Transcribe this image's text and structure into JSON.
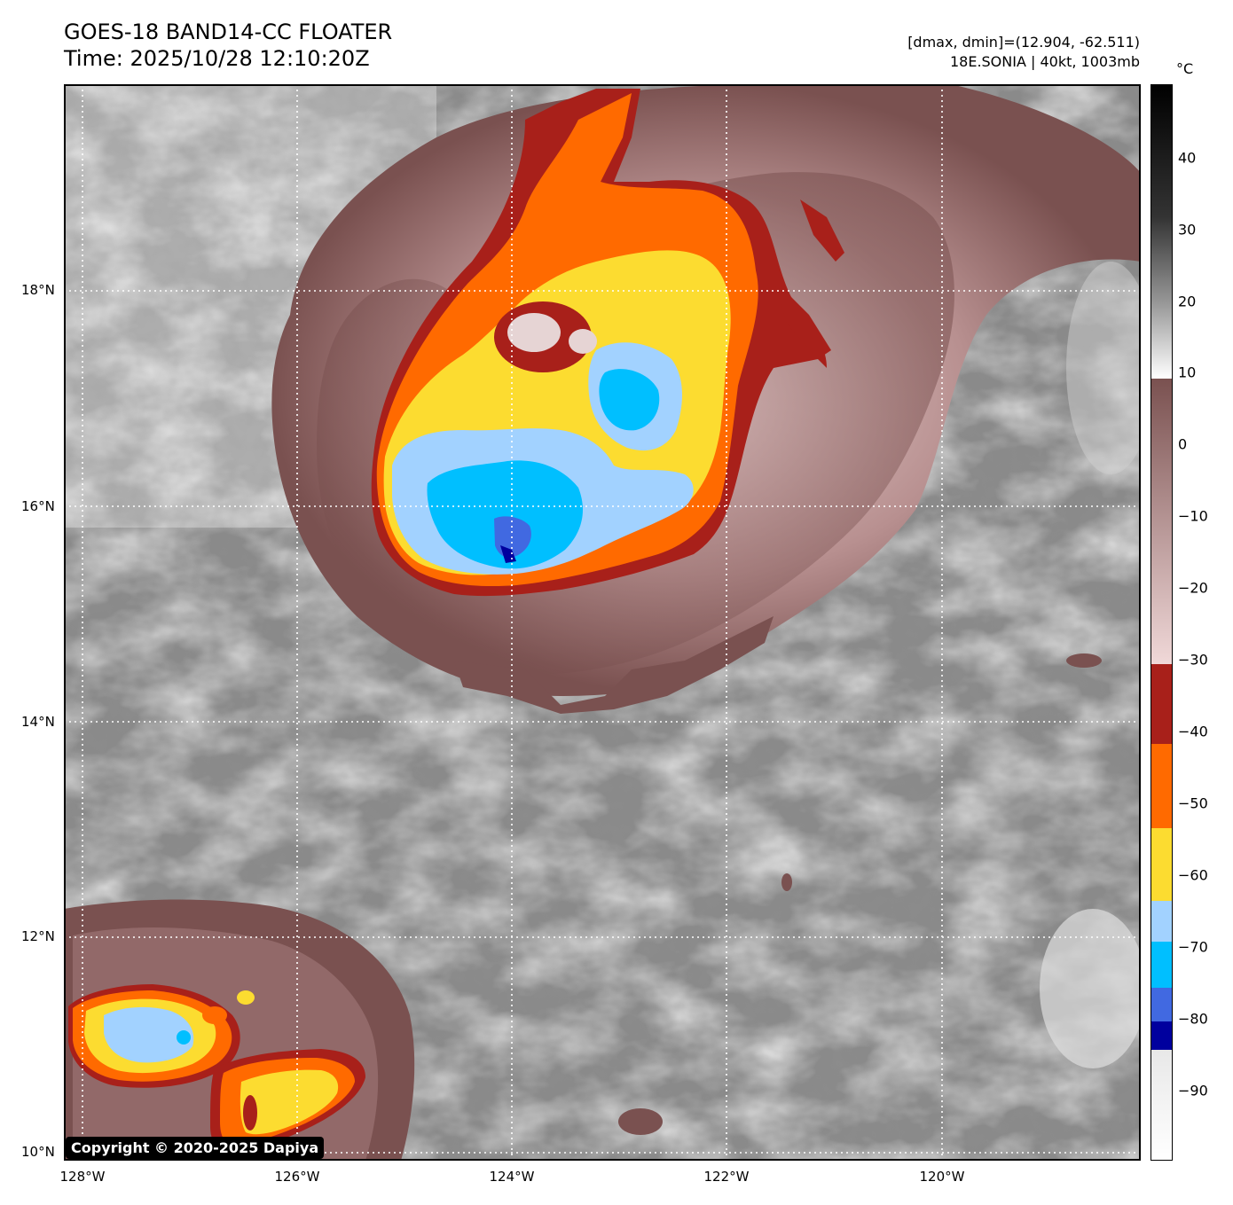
{
  "header": {
    "title_line1": "GOES-18 BAND14-CC FLOATER",
    "title_line2": "Time: 2025/10/28 12:10:20Z",
    "meta_line1": "[dmax, dmin]=(12.904, -62.511)",
    "meta_line2": "18E.SONIA | 40kt, 1003mb"
  },
  "map": {
    "lat_labels": [
      "18°N",
      "16°N",
      "14°N",
      "12°N",
      "10°N"
    ],
    "lon_labels": [
      "128°W",
      "126°W",
      "124°W",
      "122°W",
      "120°W"
    ],
    "lat_range": [
      10,
      20
    ],
    "lon_range": [
      -128,
      -118
    ],
    "storm": "18E.SONIA",
    "copyright": "Copyright © 2020-2025 Dapiya"
  },
  "colorbar": {
    "unit": "°C",
    "ticks": [
      "40",
      "30",
      "20",
      "10",
      "0",
      "−10",
      "−20",
      "−30",
      "−40",
      "−50",
      "−60",
      "−70",
      "−80",
      "−90"
    ],
    "range": [
      -100,
      50
    ],
    "colors": {
      "black": "#000000",
      "white": "#ffffff",
      "brown_dark": "#7a5150",
      "brown_light": "#f0d8d8",
      "red": "#a8201a",
      "orange": "#ff6a00",
      "yellow": "#fcdc30",
      "light_blue": "#a2d2ff",
      "cyan": "#00bfff",
      "royal_blue": "#4169e1",
      "navy": "#00009e"
    }
  }
}
